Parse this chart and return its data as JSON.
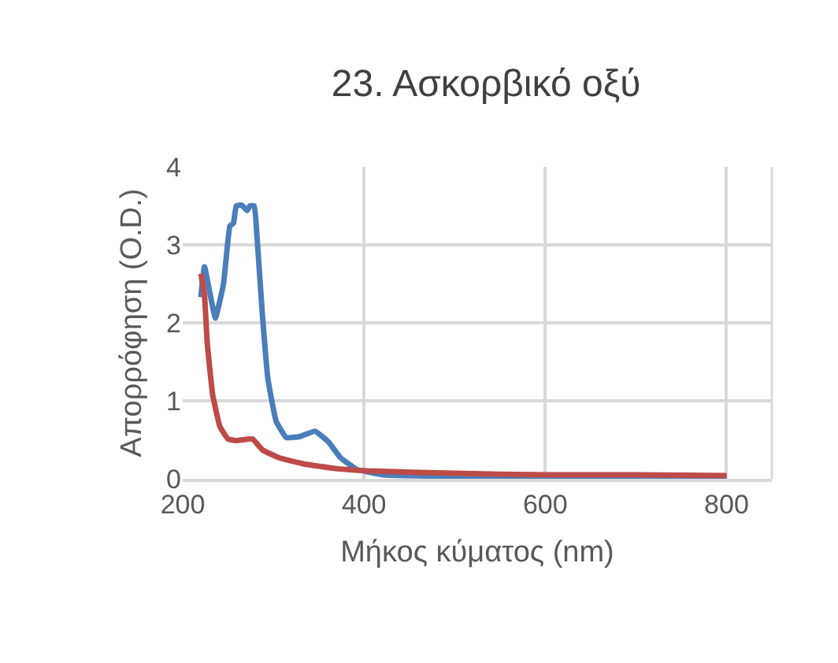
{
  "chart_data": {
    "type": "line",
    "title": "23. Ασκορβικό οξύ",
    "xlabel": "Μήκος κύματος (nm)",
    "ylabel": "Απορρόφηση (O.D.)",
    "xlim": [
      200,
      850
    ],
    "xticks": [
      200,
      400,
      600,
      800
    ],
    "ylim": [
      0,
      4
    ],
    "yticks": [
      0,
      1,
      2,
      3,
      4
    ],
    "grid": true,
    "marker": "none",
    "line_style": "solid",
    "series": [
      {
        "color": "#4a7ebb",
        "x": [
          220,
          224,
          236,
          245,
          252,
          256,
          259,
          265,
          271,
          274,
          279,
          282,
          288,
          294,
          303,
          314,
          329,
          346,
          361,
          374,
          392,
          421,
          500,
          600,
          800
        ],
        "values": [
          2.33,
          2.72,
          2.06,
          2.5,
          3.24,
          3.28,
          3.5,
          3.51,
          3.44,
          3.5,
          3.5,
          3.1,
          2.09,
          1.28,
          0.74,
          0.53,
          0.54,
          0.61,
          0.47,
          0.27,
          0.12,
          0.05,
          0.03,
          0.02,
          0.02
        ]
      },
      {
        "color": "#be4b48",
        "x": [
          220,
          224,
          227,
          233,
          241,
          250,
          259,
          277,
          288,
          306,
          334,
          369,
          404,
          500,
          600,
          700,
          800
        ],
        "values": [
          2.63,
          2.36,
          1.75,
          1.08,
          0.67,
          0.51,
          0.49,
          0.51,
          0.37,
          0.27,
          0.19,
          0.13,
          0.1,
          0.07,
          0.05,
          0.05,
          0.04
        ]
      }
    ]
  }
}
